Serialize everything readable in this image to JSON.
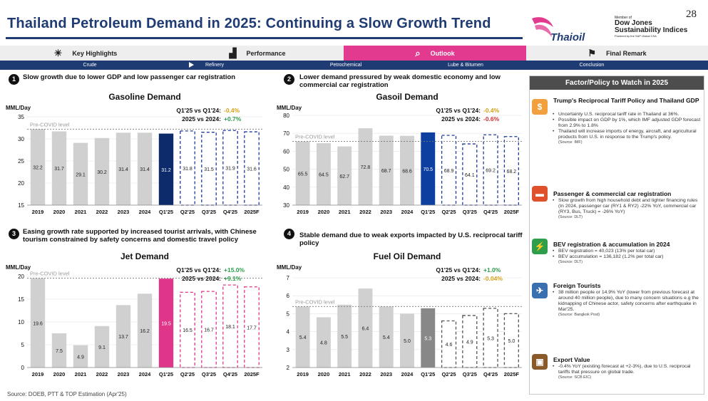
{
  "header": {
    "title": "Thailand Petroleum Demand in 2025: Continuing a Slow Growth Trend",
    "page_number": "28",
    "logo_name": "Thaioil",
    "djsi_member": "Member of",
    "djsi_line1": "Dow Jones",
    "djsi_line2": "Sustainability Indices",
    "djsi_powered": "Powered by the S&P Global CSA"
  },
  "nav": {
    "items": [
      {
        "label": "Key Highlights",
        "icon": "lightbulb-icon"
      },
      {
        "label": "Performance",
        "icon": "bar-chart-icon"
      },
      {
        "label": "Outlook",
        "icon": "telescope-icon"
      },
      {
        "label": "Final Remark",
        "icon": "flag-icon"
      }
    ],
    "active_index": 2,
    "active_color": "#e23a8e",
    "sub_items": [
      "Crude",
      "Refinery",
      "Petrochemical",
      "Lube & Bitumen",
      "Conclusion"
    ]
  },
  "sections": [
    {
      "num": "1",
      "heading": "Slow growth due to lower GDP and low passenger car registration"
    },
    {
      "num": "2",
      "heading": "Lower demand pressured by weak domestic economy and low commercial car registration"
    },
    {
      "num": "3",
      "heading": "Easing growth rate supported by increased tourist arrivals, with Chinese tourism constrained by safety concerns and domestic travel policy"
    },
    {
      "num": "4",
      "heading": "Stable demand due to weak exports impacted by U.S. reciprocal tariff policy"
    }
  ],
  "chart_data": [
    {
      "type": "bar",
      "title": "Gasoline Demand",
      "ylabel": "MML/Day",
      "ylim": [
        15,
        35
      ],
      "yticks": [
        15,
        20,
        25,
        30,
        35
      ],
      "categories": [
        "2019",
        "2020",
        "2021",
        "2022",
        "2023",
        "2024",
        "Q1'25",
        "Q2'25",
        "Q3'25",
        "Q4'25",
        "2025F"
      ],
      "values": [
        32.2,
        31.7,
        29.1,
        30.2,
        31.4,
        31.4,
        31.2,
        31.8,
        31.5,
        31.9,
        31.6
      ],
      "labels": [
        "32.2",
        "31.7",
        "29.1",
        "30.2",
        "31.4",
        "31.4",
        "31.2",
        "31.8",
        "31.5",
        "31.9",
        "31.6"
      ],
      "actual_count": 6,
      "highlight_index": 6,
      "highlight_color": "#0d2a6b",
      "forecast_color": "#1f3b9a",
      "pre_covid_level": 32.2,
      "pre_covid_label": "Pre-COVID level",
      "stats": [
        {
          "label": "Q1'25 vs Q1'24:",
          "value": "-0.4%",
          "color": "#d4a017"
        },
        {
          "label": "2025 vs 2024:",
          "value": "+0.7%",
          "color": "#2e9e4a"
        }
      ]
    },
    {
      "type": "bar",
      "title": "Gasoil Demand",
      "ylabel": "MML/Day",
      "ylim": [
        30,
        80
      ],
      "yticks": [
        30,
        40,
        50,
        60,
        70,
        80
      ],
      "categories": [
        "2019",
        "2020",
        "2021",
        "2022",
        "2023",
        "2024",
        "Q1'25",
        "Q2'25",
        "Q3'25",
        "Q4'25",
        "2025F"
      ],
      "values": [
        65.5,
        64.5,
        62.7,
        72.8,
        68.7,
        68.6,
        70.5,
        68.9,
        64.1,
        69.2,
        68.2
      ],
      "labels": [
        "65.5",
        "64.5",
        "62.7",
        "72.8",
        "68.7",
        "68.6",
        "70.5",
        "68.9",
        "64.1",
        "69.2",
        "68.2"
      ],
      "actual_count": 6,
      "highlight_index": 6,
      "highlight_color": "#0d3fa0",
      "forecast_color": "#1f3b9a",
      "pre_covid_level": 65.5,
      "pre_covid_label": "Pre-COVID level",
      "stats": [
        {
          "label": "Q1'25 vs Q1'24:",
          "value": "-0.4%",
          "color": "#d4a017"
        },
        {
          "label": "2025 vs 2024:",
          "value": "-0.6%",
          "color": "#d32f2f"
        }
      ]
    },
    {
      "type": "bar",
      "title": "Jet Demand",
      "ylabel": "MML/Day",
      "ylim": [
        0,
        20
      ],
      "yticks": [
        0,
        5,
        10,
        15,
        20
      ],
      "categories": [
        "2019",
        "2020",
        "2021",
        "2022",
        "2023",
        "2024",
        "Q1'25",
        "Q2'25",
        "Q3'25",
        "Q4'25",
        "2025F"
      ],
      "values": [
        19.6,
        7.5,
        4.9,
        9.1,
        13.7,
        16.2,
        19.5,
        16.5,
        16.7,
        18.1,
        17.7
      ],
      "labels": [
        "19.6",
        "7.5",
        "4.9",
        "9.1",
        "13.7",
        "16.2",
        "19.5",
        "16.5",
        "16.7",
        "18.1",
        "17.7"
      ],
      "actual_count": 6,
      "highlight_index": 6,
      "highlight_color": "#e0368a",
      "forecast_color": "#e0368a",
      "pre_covid_level": 19.6,
      "pre_covid_label": "Pre-COVID level",
      "stats": [
        {
          "label": "Q1'25 vs Q1'24:",
          "value": "+15.0%",
          "color": "#2e9e4a"
        },
        {
          "label": "2025 vs 2024:",
          "value": "+9.1%",
          "color": "#2e9e4a"
        }
      ]
    },
    {
      "type": "bar",
      "title": "Fuel Oil Demand",
      "ylabel": "MML/Day",
      "ylim": [
        2,
        7
      ],
      "yticks": [
        2,
        3,
        4,
        5,
        6,
        7
      ],
      "categories": [
        "2019",
        "2020",
        "2021",
        "2022",
        "2023",
        "2024",
        "Q1'25",
        "Q2'25",
        "Q3'25",
        "Q4'25",
        "2025F"
      ],
      "values": [
        5.4,
        4.8,
        5.5,
        6.4,
        5.4,
        5.0,
        5.3,
        4.6,
        4.9,
        5.3,
        5.0
      ],
      "labels": [
        "5.4",
        "4.8",
        "5.5",
        "6.4",
        "5.4",
        "5.0",
        "5.3",
        "4.6",
        "4.9",
        "5.3",
        "5.0"
      ],
      "actual_count": 6,
      "highlight_index": 6,
      "highlight_color": "#888888",
      "forecast_color": "#555555",
      "pre_covid_level": 5.4,
      "pre_covid_label": "Pre-COVID level",
      "stats": [
        {
          "label": "Q1'25 vs Q1'24:",
          "value": "+1.0%",
          "color": "#2e9e4a"
        },
        {
          "label": "2025 vs 2024:",
          "value": "-0.04%",
          "color": "#d4a017"
        }
      ]
    }
  ],
  "source": "Source: DOEB, PTT & TOP Estimation (Apr'25)",
  "panel": {
    "title": "Factor/Policy to Watch in 2025",
    "factors": [
      {
        "title": "Trump's Reciprocal Tariff Policy and Thailand GDP",
        "icon": "tariff-icon",
        "icon_color": "#f2a03d",
        "bullets": [
          "Uncertainty U.S. reciprocal tariff rate in Thailand at 36%.",
          "Possible impact on GDP by 1%, which IMF adjusted GDP forecast from 2.9% to 1.8%",
          "Thailand will increase imports of energy, aircraft, and agricultural products from U.S. in response to the Trump's policy."
        ],
        "source": "(Source: IMF)"
      },
      {
        "title": "Passenger & commercial car registration",
        "icon": "car-icon",
        "icon_color": "#e0502a",
        "bullets": [
          "Slow growth from high household debt and tighter financing rules (In 2024, passenger car (RY1 & RY2) -22% YoY, commercial car (RY3, Bus, Truck) = -26% YoY)"
        ],
        "source": "(Source: DLT)"
      },
      {
        "title": "BEV registration & accumulation in 2024",
        "icon": "ev-car-icon",
        "icon_color": "#2e9e4a",
        "bullets": [
          "BEV registration = 40,023 (13% per total car)",
          "BEV accumulation = 136,182 (1.2% per total car)"
        ],
        "source": "(Source: DLT)"
      },
      {
        "title": "Foreign Tourists",
        "icon": "tourist-icon",
        "icon_color": "#3a6fb0",
        "bullets": [
          "38 million people or 14.9% YoY (lower from previous forecast at around 40 million people), due to many concern situations e.g the kidnapping of Chinese actor, safety concerns after earthquake in Mar'25."
        ],
        "source": "(Source: Bangkok Post)"
      },
      {
        "title": "Export Value",
        "icon": "export-icon",
        "icon_color": "#8a5a2b",
        "bullets": [
          "-0.4% YoY (existing forecast at +2-3%), due to U.S. reciprocal tariffs that pressure on global trade."
        ],
        "source": "(Source: SCB EIC)"
      }
    ]
  }
}
